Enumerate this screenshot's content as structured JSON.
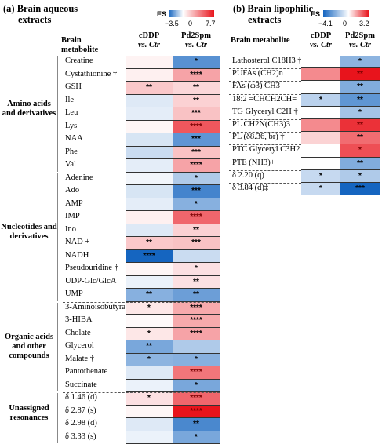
{
  "panelA": {
    "title_line1": "(a) Brain aqueous",
    "title_line2": "extracts",
    "es_label": "ES",
    "cb_min": "−3.5",
    "cb_zero": "0",
    "cb_max": "7.7",
    "hdr_metab": "Brain metabolite",
    "hdr_c1_top": "cDDP",
    "hdr_c1_bot": "vs. Ctr",
    "hdr_c2_top": "Pd2Spm",
    "hdr_c2_bot": "vs. Ctr",
    "groups": [
      {
        "label": "Amino acids and derivatives",
        "first": 0,
        "last": 8
      },
      {
        "label": "Nucleotides and derivatives",
        "first": 9,
        "last": 18
      },
      {
        "label": "Organic acids and other compounds",
        "first": 19,
        "last": 25
      },
      {
        "label": "Unassigned resonances",
        "first": 26,
        "last": 29
      }
    ],
    "rows": [
      {
        "name": "Creatine",
        "c1": 0.4,
        "c2": -2.5,
        "s1": "",
        "s2": "*"
      },
      {
        "name": "Cystathionine †",
        "c1": 0.5,
        "c2": 3.0,
        "s1": "",
        "s2": "****"
      },
      {
        "name": "GSH",
        "c1": 1.8,
        "c2": 1.3,
        "s1": "**",
        "s2": "**"
      },
      {
        "name": "Ile",
        "c1": -0.5,
        "c2": 1.5,
        "s1": "",
        "s2": "**"
      },
      {
        "name": "Leu",
        "c1": -0.4,
        "c2": 2.0,
        "s1": "",
        "s2": "***"
      },
      {
        "name": "Lys",
        "c1": 0.3,
        "c2": 5.5,
        "s1": "",
        "s2": "****"
      },
      {
        "name": "NAA",
        "c1": -0.6,
        "c2": -2.4,
        "s1": "",
        "s2": "***"
      },
      {
        "name": "Phe",
        "c1": -0.8,
        "c2": 2.0,
        "s1": "",
        "s2": "***"
      },
      {
        "name": "Val",
        "c1": -0.4,
        "c2": 3.0,
        "s1": "",
        "s2": "****"
      },
      {
        "name": "Adenine",
        "c1": -0.2,
        "c2": -1.2,
        "s1": "",
        "s2": "*"
      },
      {
        "name": "Ado",
        "c1": -0.6,
        "c2": -2.8,
        "s1": "",
        "s2": "***"
      },
      {
        "name": "AMP",
        "c1": -0.4,
        "c2": -1.8,
        "s1": "",
        "s2": "*"
      },
      {
        "name": "IMP",
        "c1": 0.5,
        "c2": 5.0,
        "s1": "",
        "s2": "****"
      },
      {
        "name": "Ino",
        "c1": -0.5,
        "c2": 1.5,
        "s1": "",
        "s2": "**"
      },
      {
        "name": "NAD +",
        "c1": 1.8,
        "c2": 2.0,
        "s1": "**",
        "s2": "***"
      },
      {
        "name": "NADH",
        "c1": -3.5,
        "c2": -0.8,
        "s1": "****",
        "s2": ""
      },
      {
        "name": "Pseudouridine †",
        "c1": 0.3,
        "c2": 1.0,
        "s1": "",
        "s2": "*"
      },
      {
        "name": "UDP-Glc/GlcA",
        "c1": -0.3,
        "c2": 1.0,
        "s1": "",
        "s2": "**"
      },
      {
        "name": "UMP",
        "c1": -1.8,
        "c2": -2.2,
        "s1": "**",
        "s2": "**"
      },
      {
        "name": "3-Aminoisobutyrate",
        "c1": 0.8,
        "c2": 2.8,
        "s1": "*",
        "s2": "****"
      },
      {
        "name": "3-HIBA",
        "c1": 0.2,
        "c2": 2.8,
        "s1": "",
        "s2": "****"
      },
      {
        "name": "Cholate",
        "c1": 0.8,
        "c2": 3.0,
        "s1": "*",
        "s2": "****"
      },
      {
        "name": "Glycerol",
        "c1": -2.0,
        "c2": -1.2,
        "s1": "**",
        "s2": ""
      },
      {
        "name": "Malate †",
        "c1": -1.7,
        "c2": -1.8,
        "s1": "*",
        "s2": "*"
      },
      {
        "name": "Pantothenate",
        "c1": -0.5,
        "c2": 4.5,
        "s1": "",
        "s2": "****"
      },
      {
        "name": "Succinate",
        "c1": -0.3,
        "c2": -2.0,
        "s1": "",
        "s2": "*"
      },
      {
        "name": "δ 1.46 (d)",
        "c1": 1.0,
        "c2": 5.0,
        "s1": "*",
        "s2": "****"
      },
      {
        "name": "δ 2.87 (s)",
        "c1": 0.3,
        "c2": 7.7,
        "s1": "",
        "s2": "****"
      },
      {
        "name": "δ 2.98 (d)",
        "c1": -0.5,
        "c2": -2.7,
        "s1": "",
        "s2": "**"
      },
      {
        "name": "δ 3.33 (s)",
        "c1": -0.3,
        "c2": -2.0,
        "s1": "",
        "s2": "*"
      }
    ]
  },
  "panelB": {
    "title_line1": "(b) Brain lipophilic",
    "title_line2": "extracts",
    "es_label": "ES",
    "cb_min": "−4.1",
    "cb_zero": "0",
    "cb_max": "3.2",
    "hdr_metab": "Brain metabolite",
    "hdr_c1_top": "cDDP",
    "hdr_c1_bot": "vs. Ctr",
    "hdr_c2_top": "Pd2Spm",
    "hdr_c2_bot": "vs. Ctr",
    "rows": [
      {
        "name": "Lathosterol C18H3 †",
        "c1": 0,
        "c2": -2.0,
        "s1": "",
        "s2": "*"
      },
      {
        "name": "PUFAs (CH2)n",
        "c1": 1.6,
        "c2": 3.2,
        "s1": "",
        "s2": "**"
      },
      {
        "name": "FAs (ω3) CH3",
        "c1": 0,
        "c2": -2.2,
        "s1": "",
        "s2": "**"
      },
      {
        "name": "18:2 =CHCH2CH=",
        "c1": -1.2,
        "c2": -2.8,
        "s1": "*",
        "s2": "**"
      },
      {
        "name": "TG Glyceryl C2H †",
        "c1": 0,
        "c2": -1.6,
        "s1": "",
        "s2": "*"
      },
      {
        "name": "PL CH2N(CH3)3",
        "c1": 1.6,
        "c2": 2.8,
        "s1": "",
        "s2": "**"
      },
      {
        "name": "PL (δ8.36, br) †",
        "c1": 0.6,
        "c2": 2.0,
        "s1": "",
        "s2": "**"
      },
      {
        "name": "PTC Glyceryl C3H2",
        "c1": 0,
        "c2": 2.4,
        "s1": "",
        "s2": "*"
      },
      {
        "name": "PTE (NH3)+",
        "c1": 0,
        "c2": -2.2,
        "s1": "",
        "s2": "**"
      },
      {
        "name": "δ 2.20 (q)",
        "c1": -1.0,
        "c2": -1.4,
        "s1": "*",
        "s2": "*"
      },
      {
        "name": "δ 3.84 (d)‡",
        "c1": -1.0,
        "c2": -4.1,
        "s1": "*",
        "s2": "***"
      }
    ]
  },
  "colors": {
    "neg": "#1565c0",
    "pos": "#e8141c",
    "zero": "#ffffff"
  }
}
